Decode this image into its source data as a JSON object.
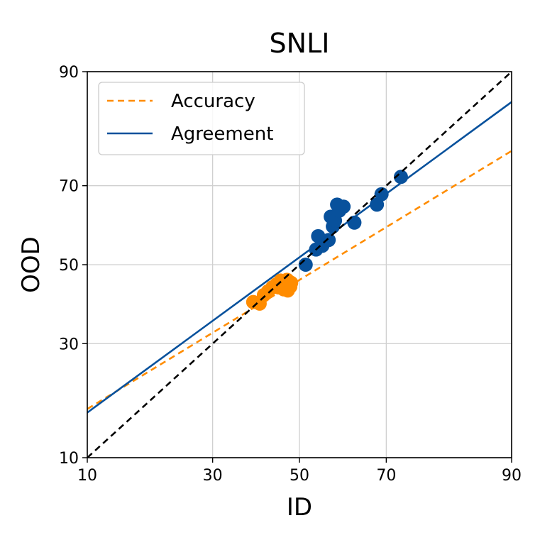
{
  "chart_data": {
    "type": "scatter",
    "title": "SNLI",
    "xlabel": "ID",
    "ylabel": "OOD",
    "xlim": [
      10,
      90
    ],
    "ylim": [
      10,
      90
    ],
    "scale": "probit",
    "xticks": [
      10,
      30,
      50,
      70,
      90
    ],
    "yticks": [
      10,
      30,
      50,
      70,
      90
    ],
    "grid": true,
    "legend_position": "top-left",
    "colors": {
      "accuracy": "#ff8c00",
      "agreement": "#08519c",
      "reference": "#000000",
      "grid": "#d0d0d0"
    },
    "series": [
      {
        "name": "Accuracy",
        "kind": "scatter+fit",
        "linestyle": "dashed",
        "fit_line": [
          [
            10,
            16.9
          ],
          [
            90,
            77.5
          ]
        ],
        "points": [
          [
            39.0,
            40.2
          ],
          [
            40.5,
            39.8
          ],
          [
            41.5,
            42.0
          ],
          [
            42.5,
            43.0
          ],
          [
            43.5,
            44.0
          ],
          [
            44.5,
            44.8
          ],
          [
            45.5,
            45.8
          ],
          [
            46.0,
            45.5
          ],
          [
            46.5,
            43.8
          ],
          [
            47.0,
            46.0
          ],
          [
            47.5,
            45.5
          ],
          [
            47.8,
            44.2
          ],
          [
            48.0,
            45.2
          ],
          [
            46.2,
            43.5
          ],
          [
            47.2,
            43.2
          ],
          [
            45.0,
            44.0
          ],
          [
            45.8,
            44.5
          ]
        ]
      },
      {
        "name": "Agreement",
        "kind": "scatter+fit",
        "linestyle": "solid",
        "fit_line": [
          [
            10,
            16.3
          ],
          [
            90,
            86.0
          ]
        ],
        "points": [
          [
            51.5,
            50.0
          ],
          [
            54.0,
            54.0
          ],
          [
            54.5,
            57.5
          ],
          [
            55.5,
            55.0
          ],
          [
            57.0,
            56.5
          ],
          [
            57.5,
            62.5
          ],
          [
            58.0,
            60.0
          ],
          [
            58.5,
            61.5
          ],
          [
            59.0,
            65.5
          ],
          [
            59.5,
            64.0
          ],
          [
            60.5,
            65.0
          ],
          [
            63.0,
            61.0
          ],
          [
            68.0,
            65.5
          ],
          [
            69.0,
            68.0
          ],
          [
            73.0,
            72.0
          ]
        ]
      }
    ],
    "reference_line": [
      [
        10,
        10
      ],
      [
        90,
        90
      ]
    ]
  }
}
